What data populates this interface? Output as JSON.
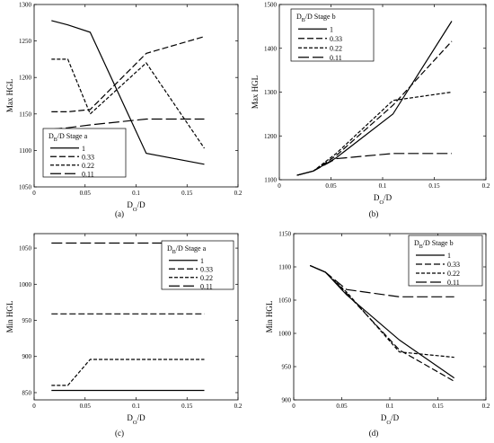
{
  "chart_data": [
    {
      "type": "line",
      "panel_label": "(a)",
      "xlabel": {
        "main": "D",
        "sub": "O",
        "rest": "/D"
      },
      "ylabel": "Max HGL",
      "xlim": [
        0,
        0.2
      ],
      "ylim": [
        1050,
        1300
      ],
      "xticks": [
        0,
        0.05,
        0.1,
        0.15,
        0.2
      ],
      "xtick_labels": [
        "0",
        "0.05",
        "0.1",
        "0.15",
        "0.2"
      ],
      "yticks": [
        1050,
        1100,
        1150,
        1200,
        1250,
        1300
      ],
      "ytick_labels": [
        "1050",
        "1100",
        "1150",
        "1200",
        "1250",
        "1300"
      ],
      "legend": {
        "title_main": "D",
        "title_sub": "B",
        "title_rest": "/D Stage a",
        "position": "lower-left"
      },
      "series": [
        {
          "name": "1",
          "style": "solid",
          "x": [
            0.017,
            0.033,
            0.055,
            0.11,
            0.167
          ],
          "y": [
            1278,
            1272,
            1262,
            1096,
            1081
          ]
        },
        {
          "name": "0.33",
          "style": "dash",
          "x": [
            0.017,
            0.033,
            0.055,
            0.11,
            0.167
          ],
          "y": [
            1153,
            1153,
            1156,
            1233,
            1256
          ]
        },
        {
          "name": "0.22",
          "style": "dash-short",
          "x": [
            0.017,
            0.033,
            0.055,
            0.11,
            0.167
          ],
          "y": [
            1225,
            1225,
            1150,
            1220,
            1103
          ]
        },
        {
          "name": "0.11",
          "style": "dash-long",
          "x": [
            0.017,
            0.033,
            0.055,
            0.11,
            0.167
          ],
          "y": [
            1129,
            1131,
            1135,
            1143,
            1143
          ]
        }
      ]
    },
    {
      "type": "line",
      "panel_label": "(b)",
      "xlabel": {
        "main": "D",
        "sub": "O",
        "rest": "/D"
      },
      "ylabel": "Max HGL",
      "xlim": [
        0,
        0.2
      ],
      "ylim": [
        1100,
        1500
      ],
      "xticks": [
        0,
        0.05,
        0.1,
        0.15,
        0.2
      ],
      "xtick_labels": [
        "0",
        "0.05",
        "0.1",
        "0.15",
        "0.2"
      ],
      "yticks": [
        1100,
        1200,
        1300,
        1400,
        1500
      ],
      "ytick_labels": [
        "1100",
        "1200",
        "1300",
        "1400",
        "1500"
      ],
      "legend": {
        "title_main": "D",
        "title_sub": "B",
        "title_rest": "/D Stage b",
        "position": "top-left"
      },
      "series": [
        {
          "name": "1",
          "style": "solid",
          "x": [
            0.017,
            0.033,
            0.055,
            0.11,
            0.167
          ],
          "y": [
            1110,
            1120,
            1150,
            1250,
            1462
          ]
        },
        {
          "name": "0.33",
          "style": "dash",
          "x": [
            0.017,
            0.033,
            0.055,
            0.11,
            0.167
          ],
          "y": [
            1110,
            1120,
            1155,
            1270,
            1416
          ]
        },
        {
          "name": "0.22",
          "style": "dash-short",
          "x": [
            0.017,
            0.033,
            0.055,
            0.11,
            0.167
          ],
          "y": [
            1110,
            1120,
            1160,
            1281,
            1300
          ]
        },
        {
          "name": "0.11",
          "style": "dash-long",
          "x": [
            0.017,
            0.033,
            0.055,
            0.11,
            0.167
          ],
          "y": [
            1110,
            1120,
            1148,
            1160,
            1160
          ]
        }
      ]
    },
    {
      "type": "line",
      "panel_label": "(c)",
      "xlabel": {
        "main": "D",
        "sub": "O",
        "rest": "/D"
      },
      "ylabel": "Min HGL",
      "xlim": [
        0,
        0.2
      ],
      "ylim": [
        840,
        1070
      ],
      "xticks": [
        0,
        0.05,
        0.1,
        0.15,
        0.2
      ],
      "xtick_labels": [
        "0",
        "0.05",
        "0.1",
        "0.15",
        "0.2"
      ],
      "yticks": [
        850,
        900,
        950,
        1000,
        1050
      ],
      "ytick_labels": [
        "850",
        "900",
        "950",
        "1000",
        "1050"
      ],
      "legend": {
        "title_main": "D",
        "title_sub": "B",
        "title_rest": "/D Stage a",
        "position": "upper-right"
      },
      "series": [
        {
          "name": "1",
          "style": "solid",
          "x": [
            0.017,
            0.033,
            0.055,
            0.11,
            0.167
          ],
          "y": [
            853,
            853,
            853,
            853,
            853
          ]
        },
        {
          "name": "0.33",
          "style": "dash",
          "x": [
            0.017,
            0.033,
            0.055,
            0.11,
            0.167
          ],
          "y": [
            959,
            959,
            959,
            959,
            959
          ]
        },
        {
          "name": "0.22",
          "style": "dash-short",
          "x": [
            0.017,
            0.033,
            0.055,
            0.11,
            0.167
          ],
          "y": [
            860,
            860,
            896,
            896,
            896
          ]
        },
        {
          "name": "0.11",
          "style": "dash-long",
          "x": [
            0.017,
            0.033,
            0.055,
            0.11,
            0.167
          ],
          "y": [
            1057,
            1057,
            1057,
            1057,
            1057
          ]
        }
      ]
    },
    {
      "type": "line",
      "panel_label": "(d)",
      "xlabel": {
        "main": "D",
        "sub": "O",
        "rest": "/D"
      },
      "ylabel": "Min HGL",
      "xlim": [
        0,
        0.2
      ],
      "ylim": [
        900,
        1150
      ],
      "xticks": [
        0,
        0.05,
        0.1,
        0.15,
        0.2
      ],
      "xtick_labels": [
        "0",
        "0.05",
        "0.1",
        "0.15",
        "0.2"
      ],
      "yticks": [
        900,
        950,
        1000,
        1050,
        1100,
        1150
      ],
      "ytick_labels": [
        "900",
        "950",
        "1000",
        "1050",
        "1100",
        "1150"
      ],
      "legend": {
        "title_main": "D",
        "title_sub": "B",
        "title_rest": "/D Stage b",
        "position": "top-right"
      },
      "series": [
        {
          "name": "1",
          "style": "solid",
          "x": [
            0.017,
            0.033,
            0.055,
            0.11,
            0.167
          ],
          "y": [
            1102,
            1092,
            1058,
            990,
            933
          ]
        },
        {
          "name": "0.33",
          "style": "dash",
          "x": [
            0.017,
            0.033,
            0.055,
            0.11,
            0.167
          ],
          "y": [
            1102,
            1092,
            1060,
            975,
            928
          ]
        },
        {
          "name": "0.22",
          "style": "dash-short",
          "x": [
            0.017,
            0.033,
            0.055,
            0.11,
            0.167
          ],
          "y": [
            1102,
            1092,
            1062,
            972,
            964
          ]
        },
        {
          "name": "0.11",
          "style": "dash-long",
          "x": [
            0.017,
            0.033,
            0.055,
            0.11,
            0.167
          ],
          "y": [
            1102,
            1092,
            1066,
            1055,
            1055
          ]
        }
      ]
    }
  ]
}
